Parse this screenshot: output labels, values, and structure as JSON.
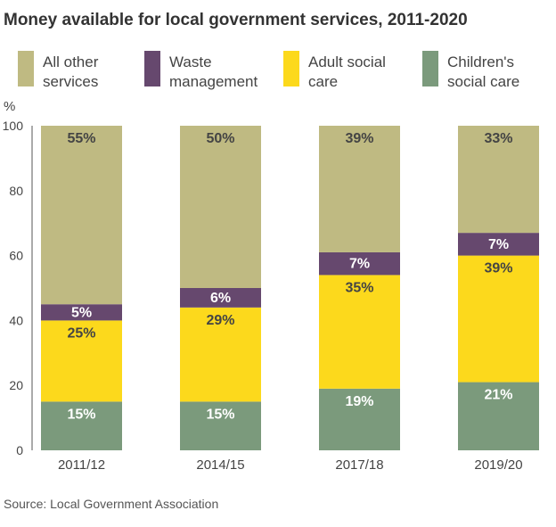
{
  "chart_data": {
    "type": "bar",
    "stacked": true,
    "title": "Money available for local government services, 2011-2020",
    "ylabel": "%",
    "xlabel": "",
    "ylim": [
      0,
      100
    ],
    "yticks": [
      "0",
      "20",
      "40",
      "60",
      "80",
      "100"
    ],
    "categories": [
      "2011/12",
      "2014/15",
      "2017/18",
      "2019/20"
    ],
    "series": [
      {
        "name": "Children's social care",
        "color": "#7b9a7c",
        "label_color": "#ffffff",
        "values": [
          15,
          15,
          19,
          21
        ],
        "labels": [
          "15%",
          "15%",
          "19%",
          "21%"
        ]
      },
      {
        "name": "Adult social care",
        "color": "#fcd91c",
        "label_color": "#444444",
        "values": [
          25,
          29,
          35,
          39
        ],
        "labels": [
          "25%",
          "29%",
          "35%",
          "39%"
        ]
      },
      {
        "name": "Waste management",
        "color": "#66486e",
        "label_color": "#ffffff",
        "values": [
          5,
          6,
          7,
          7
        ],
        "labels": [
          "5%",
          "6%",
          "7%",
          "7%"
        ]
      },
      {
        "name": "All other services",
        "color": "#bfba82",
        "label_color": "#444444",
        "values": [
          55,
          50,
          39,
          33
        ],
        "labels": [
          "55%",
          "50%",
          "39%",
          "33%"
        ]
      }
    ],
    "legend": [
      {
        "line1": "All other",
        "line2": "services",
        "color": "#bfba82"
      },
      {
        "line1": "Waste",
        "line2": "management",
        "color": "#66486e"
      },
      {
        "line1": "Adult social",
        "line2": "care",
        "color": "#fcd91c"
      },
      {
        "line1": "Children's",
        "line2": "social care",
        "color": "#7b9a7c"
      }
    ],
    "legend_position": "top",
    "grid": false,
    "source": "Source: Local Government Association"
  }
}
